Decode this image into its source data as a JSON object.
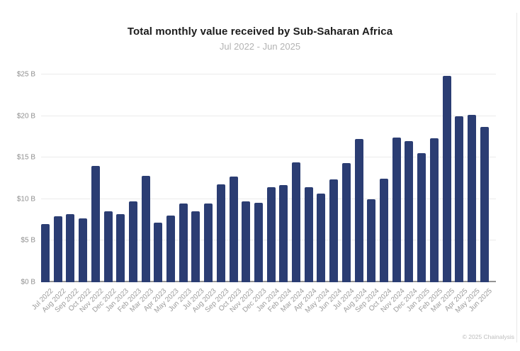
{
  "header": {
    "title": "Total monthly value received by Sub-Saharan Africa",
    "subtitle": "Jul 2022 - Jun 2025"
  },
  "footer": {
    "copyright": "© 2025 Chainalysis"
  },
  "colors": {
    "bar": "#2b3d73",
    "grid": "#ebebeb",
    "axis": "#949494",
    "tick_text": "#8f8f8f",
    "title_text": "#1c1c1c",
    "subtitle_text": "#b3b3b3",
    "copyright_text": "#bdbdbd"
  },
  "chart_data": {
    "type": "bar",
    "title": "Total monthly value received by Sub-Saharan Africa",
    "subtitle": "Jul 2022 - Jun 2025",
    "xlabel": "",
    "ylabel": "",
    "ylim": [
      0,
      25
    ],
    "y_ticks": [
      "$0 B",
      "$5 B",
      "$10 B",
      "$15 B",
      "$20 B",
      "$25 B"
    ],
    "grid": true,
    "legend": false,
    "categories": [
      "Jul 2022",
      "Aug 2022",
      "Sep 2022",
      "Oct 2022",
      "Nov 2022",
      "Dec 2022",
      "Jan 2023",
      "Feb 2023",
      "Mar 2023",
      "Apr 2023",
      "May 2023",
      "Jun 2023",
      "Jul 2023",
      "Aug 2023",
      "Sep 2023",
      "Oct 2023",
      "Nov 2023",
      "Dec 2023",
      "Jan 2024",
      "Feb 2024",
      "Mar 2024",
      "Apr 2024",
      "May 2024",
      "Jun 2024",
      "Jul 2024",
      "Aug 2024",
      "Sep 2024",
      "Oct 2024",
      "Nov 2024",
      "Dec 2024",
      "Jan 2025",
      "Feb 2025",
      "Mar 2025",
      "Apr 2025",
      "May 2025",
      "Jun 2025"
    ],
    "values": [
      7.0,
      7.9,
      8.2,
      7.7,
      14.0,
      8.5,
      8.2,
      9.7,
      12.8,
      7.2,
      8.0,
      9.5,
      8.5,
      9.5,
      11.8,
      12.7,
      9.7,
      9.6,
      11.4,
      11.7,
      14.4,
      11.4,
      10.7,
      12.4,
      14.3,
      17.2,
      10.0,
      12.5,
      17.4,
      17.0,
      15.5,
      17.3,
      24.8,
      20.0,
      20.1,
      18.7
    ]
  }
}
